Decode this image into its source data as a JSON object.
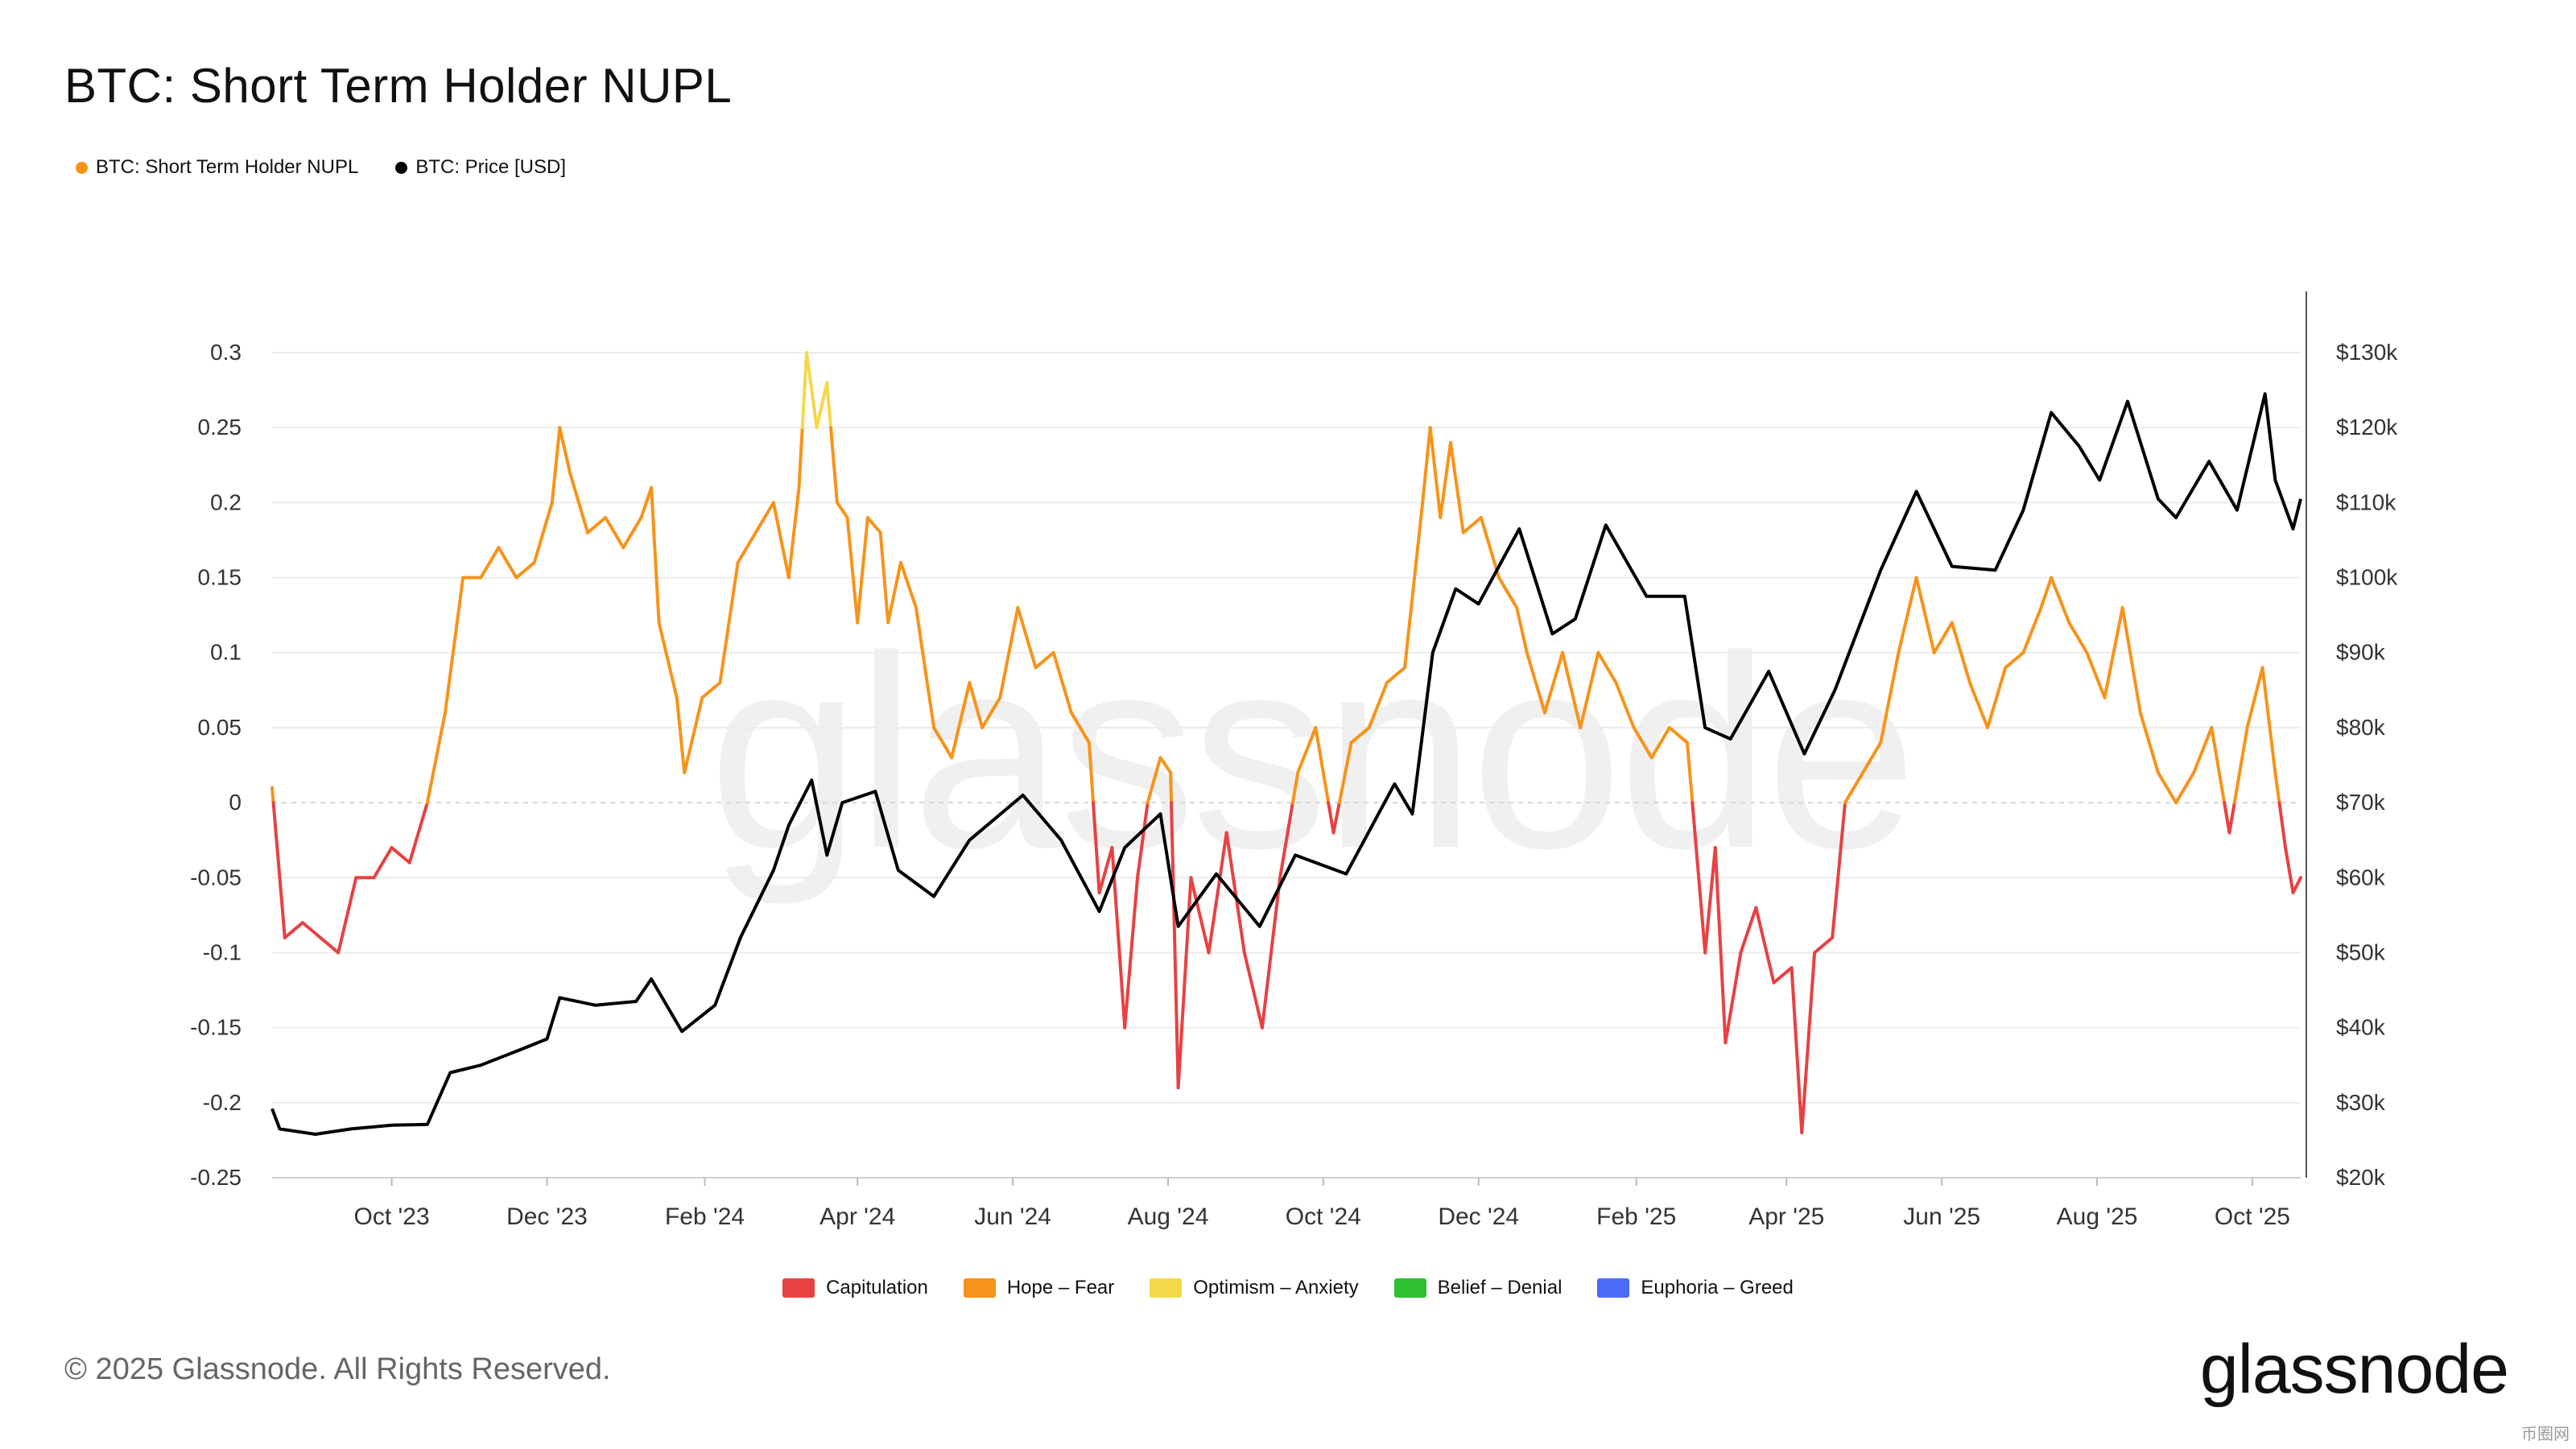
{
  "title": "BTC: Short Term Holder NUPL",
  "legend_top": [
    {
      "label": "BTC: Short Term Holder NUPL",
      "color": "#f7931a"
    },
    {
      "label": "BTC: Price [USD]",
      "color": "#000000"
    }
  ],
  "legend_bottom": [
    {
      "label": "Capitulation",
      "color": "#e84142"
    },
    {
      "label": "Hope – Fear",
      "color": "#f7931a"
    },
    {
      "label": "Optimism – Anxiety",
      "color": "#f4d84a"
    },
    {
      "label": "Belief – Denial",
      "color": "#2fc12f"
    },
    {
      "label": "Euphoria – Greed",
      "color": "#4a6cf7"
    }
  ],
  "watermark": "glassnode",
  "copyright": "© 2025 Glassnode. All Rights Reserved.",
  "logo": "glassnode",
  "corner_mark": "币圈网",
  "chart_data": {
    "type": "line",
    "title": "BTC: Short Term Holder NUPL",
    "x_ticks": [
      "Oct '23",
      "Dec '23",
      "Feb '24",
      "Apr '24",
      "Jun '24",
      "Aug '24",
      "Oct '24",
      "Dec '24",
      "Feb '25",
      "Apr '25",
      "Jun '25",
      "Aug '25",
      "Oct '25"
    ],
    "y_left_ticks": [
      "0.3",
      "0.25",
      "0.2",
      "0.15",
      "0.1",
      "0.05",
      "0",
      "-0.05",
      "-0.1",
      "-0.15",
      "-0.2",
      "-0.25"
    ],
    "y_right_ticks": [
      "$130k",
      "$120k",
      "$110k",
      "$100k",
      "$90k",
      "$80k",
      "$70k",
      "$60k",
      "$50k",
      "$40k",
      "$30k",
      "$20k"
    ],
    "x_range": [
      "2023-08-15",
      "2025-10-20"
    ],
    "y_left_range": [
      -0.25,
      0.3
    ],
    "y_right_range": [
      20000,
      130000
    ],
    "grid": true,
    "legend_position": "top-left",
    "series": [
      {
        "name": "BTC: Short Term Holder NUPL",
        "axis": "left",
        "color_by_zone": true,
        "points": [
          [
            "2023-08-15",
            0.01
          ],
          [
            "2023-08-20",
            -0.09
          ],
          [
            "2023-08-27",
            -0.08
          ],
          [
            "2023-09-03",
            -0.09
          ],
          [
            "2023-09-10",
            -0.1
          ],
          [
            "2023-09-17",
            -0.05
          ],
          [
            "2023-09-24",
            -0.05
          ],
          [
            "2023-10-01",
            -0.03
          ],
          [
            "2023-10-08",
            -0.04
          ],
          [
            "2023-10-15",
            0.0
          ],
          [
            "2023-10-22",
            0.06
          ],
          [
            "2023-10-29",
            0.15
          ],
          [
            "2023-11-05",
            0.15
          ],
          [
            "2023-11-12",
            0.17
          ],
          [
            "2023-11-19",
            0.15
          ],
          [
            "2023-11-26",
            0.16
          ],
          [
            "2023-12-03",
            0.2
          ],
          [
            "2023-12-06",
            0.25
          ],
          [
            "2023-12-10",
            0.22
          ],
          [
            "2023-12-17",
            0.18
          ],
          [
            "2023-12-24",
            0.19
          ],
          [
            "2023-12-31",
            0.17
          ],
          [
            "2024-01-07",
            0.19
          ],
          [
            "2024-01-11",
            0.21
          ],
          [
            "2024-01-14",
            0.12
          ],
          [
            "2024-01-21",
            0.07
          ],
          [
            "2024-01-24",
            0.02
          ],
          [
            "2024-01-31",
            0.07
          ],
          [
            "2024-02-07",
            0.08
          ],
          [
            "2024-02-14",
            0.16
          ],
          [
            "2024-02-21",
            0.18
          ],
          [
            "2024-02-28",
            0.2
          ],
          [
            "2024-03-05",
            0.15
          ],
          [
            "2024-03-09",
            0.21
          ],
          [
            "2024-03-12",
            0.3
          ],
          [
            "2024-03-16",
            0.25
          ],
          [
            "2024-03-20",
            0.28
          ],
          [
            "2024-03-24",
            0.2
          ],
          [
            "2024-03-28",
            0.19
          ],
          [
            "2024-04-01",
            0.12
          ],
          [
            "2024-04-05",
            0.19
          ],
          [
            "2024-04-10",
            0.18
          ],
          [
            "2024-04-13",
            0.12
          ],
          [
            "2024-04-18",
            0.16
          ],
          [
            "2024-04-24",
            0.13
          ],
          [
            "2024-05-01",
            0.05
          ],
          [
            "2024-05-08",
            0.03
          ],
          [
            "2024-05-15",
            0.08
          ],
          [
            "2024-05-20",
            0.05
          ],
          [
            "2024-05-27",
            0.07
          ],
          [
            "2024-06-03",
            0.13
          ],
          [
            "2024-06-10",
            0.09
          ],
          [
            "2024-06-17",
            0.1
          ],
          [
            "2024-06-24",
            0.06
          ],
          [
            "2024-07-01",
            0.04
          ],
          [
            "2024-07-05",
            -0.06
          ],
          [
            "2024-07-10",
            -0.03
          ],
          [
            "2024-07-15",
            -0.15
          ],
          [
            "2024-07-20",
            -0.05
          ],
          [
            "2024-07-24",
            0.0
          ],
          [
            "2024-07-29",
            0.03
          ],
          [
            "2024-08-02",
            0.02
          ],
          [
            "2024-08-05",
            -0.19
          ],
          [
            "2024-08-10",
            -0.05
          ],
          [
            "2024-08-17",
            -0.1
          ],
          [
            "2024-08-24",
            -0.02
          ],
          [
            "2024-08-31",
            -0.1
          ],
          [
            "2024-09-07",
            -0.15
          ],
          [
            "2024-09-14",
            -0.05
          ],
          [
            "2024-09-21",
            0.02
          ],
          [
            "2024-09-28",
            0.05
          ],
          [
            "2024-10-05",
            -0.02
          ],
          [
            "2024-10-12",
            0.04
          ],
          [
            "2024-10-19",
            0.05
          ],
          [
            "2024-10-26",
            0.08
          ],
          [
            "2024-11-02",
            0.09
          ],
          [
            "2024-11-09",
            0.2
          ],
          [
            "2024-11-12",
            0.25
          ],
          [
            "2024-11-16",
            0.19
          ],
          [
            "2024-11-20",
            0.24
          ],
          [
            "2024-11-25",
            0.18
          ],
          [
            "2024-12-02",
            0.19
          ],
          [
            "2024-12-09",
            0.15
          ],
          [
            "2024-12-16",
            0.13
          ],
          [
            "2024-12-20",
            0.1
          ],
          [
            "2024-12-27",
            0.06
          ],
          [
            "2025-01-03",
            0.1
          ],
          [
            "2025-01-10",
            0.05
          ],
          [
            "2025-01-17",
            0.1
          ],
          [
            "2025-01-24",
            0.08
          ],
          [
            "2025-01-31",
            0.05
          ],
          [
            "2025-02-07",
            0.03
          ],
          [
            "2025-02-14",
            0.05
          ],
          [
            "2025-02-21",
            0.04
          ],
          [
            "2025-02-25",
            -0.04
          ],
          [
            "2025-02-28",
            -0.1
          ],
          [
            "2025-03-04",
            -0.03
          ],
          [
            "2025-03-08",
            -0.16
          ],
          [
            "2025-03-14",
            -0.1
          ],
          [
            "2025-03-20",
            -0.07
          ],
          [
            "2025-03-27",
            -0.12
          ],
          [
            "2025-04-03",
            -0.11
          ],
          [
            "2025-04-07",
            -0.22
          ],
          [
            "2025-04-12",
            -0.1
          ],
          [
            "2025-04-19",
            -0.09
          ],
          [
            "2025-04-24",
            0.0
          ],
          [
            "2025-05-01",
            0.02
          ],
          [
            "2025-05-08",
            0.04
          ],
          [
            "2025-05-15",
            0.1
          ],
          [
            "2025-05-22",
            0.15
          ],
          [
            "2025-05-29",
            0.1
          ],
          [
            "2025-06-05",
            0.12
          ],
          [
            "2025-06-12",
            0.08
          ],
          [
            "2025-06-19",
            0.05
          ],
          [
            "2025-06-26",
            0.09
          ],
          [
            "2025-07-03",
            0.1
          ],
          [
            "2025-07-10",
            0.13
          ],
          [
            "2025-07-14",
            0.15
          ],
          [
            "2025-07-21",
            0.12
          ],
          [
            "2025-07-28",
            0.1
          ],
          [
            "2025-08-04",
            0.07
          ],
          [
            "2025-08-11",
            0.13
          ],
          [
            "2025-08-18",
            0.06
          ],
          [
            "2025-08-25",
            0.02
          ],
          [
            "2025-09-01",
            0.0
          ],
          [
            "2025-09-08",
            0.02
          ],
          [
            "2025-09-15",
            0.05
          ],
          [
            "2025-09-22",
            -0.02
          ],
          [
            "2025-09-29",
            0.05
          ],
          [
            "2025-10-05",
            0.09
          ],
          [
            "2025-10-10",
            0.02
          ],
          [
            "2025-10-14",
            -0.03
          ],
          [
            "2025-10-17",
            -0.06
          ],
          [
            "2025-10-20",
            -0.05
          ]
        ]
      },
      {
        "name": "BTC: Price [USD]",
        "axis": "right",
        "color": "#000000",
        "points": [
          [
            "2023-08-15",
            29200
          ],
          [
            "2023-08-18",
            26500
          ],
          [
            "2023-09-01",
            25800
          ],
          [
            "2023-09-15",
            26500
          ],
          [
            "2023-10-01",
            27000
          ],
          [
            "2023-10-15",
            27100
          ],
          [
            "2023-10-24",
            34000
          ],
          [
            "2023-11-05",
            35000
          ],
          [
            "2023-11-20",
            37000
          ],
          [
            "2023-12-01",
            38500
          ],
          [
            "2023-12-06",
            44000
          ],
          [
            "2023-12-20",
            43000
          ],
          [
            "2024-01-05",
            43500
          ],
          [
            "2024-01-11",
            46500
          ],
          [
            "2024-01-23",
            39500
          ],
          [
            "2024-02-05",
            43000
          ],
          [
            "2024-02-15",
            52000
          ],
          [
            "2024-02-28",
            61000
          ],
          [
            "2024-03-05",
            67000
          ],
          [
            "2024-03-14",
            73000
          ],
          [
            "2024-03-20",
            63000
          ],
          [
            "2024-03-26",
            70000
          ],
          [
            "2024-04-08",
            71500
          ],
          [
            "2024-04-17",
            61000
          ],
          [
            "2024-05-01",
            57500
          ],
          [
            "2024-05-15",
            65000
          ],
          [
            "2024-06-05",
            71000
          ],
          [
            "2024-06-20",
            65000
          ],
          [
            "2024-07-05",
            55500
          ],
          [
            "2024-07-15",
            64000
          ],
          [
            "2024-07-29",
            68500
          ],
          [
            "2024-08-05",
            53500
          ],
          [
            "2024-08-20",
            60500
          ],
          [
            "2024-09-06",
            53500
          ],
          [
            "2024-09-20",
            63000
          ],
          [
            "2024-10-10",
            60500
          ],
          [
            "2024-10-29",
            72500
          ],
          [
            "2024-11-05",
            68500
          ],
          [
            "2024-11-13",
            90000
          ],
          [
            "2024-11-22",
            98500
          ],
          [
            "2024-12-01",
            96500
          ],
          [
            "2024-12-17",
            106500
          ],
          [
            "2024-12-30",
            92500
          ],
          [
            "2025-01-08",
            94500
          ],
          [
            "2025-01-20",
            107000
          ],
          [
            "2025-02-05",
            97500
          ],
          [
            "2025-02-20",
            97500
          ],
          [
            "2025-02-28",
            80000
          ],
          [
            "2025-03-10",
            78500
          ],
          [
            "2025-03-25",
            87500
          ],
          [
            "2025-04-08",
            76500
          ],
          [
            "2025-04-20",
            85000
          ],
          [
            "2025-05-08",
            101000
          ],
          [
            "2025-05-22",
            111500
          ],
          [
            "2025-06-05",
            101500
          ],
          [
            "2025-06-22",
            101000
          ],
          [
            "2025-07-03",
            109000
          ],
          [
            "2025-07-14",
            122000
          ],
          [
            "2025-07-25",
            117500
          ],
          [
            "2025-08-02",
            113000
          ],
          [
            "2025-08-13",
            123500
          ],
          [
            "2025-08-25",
            110500
          ],
          [
            "2025-09-01",
            108000
          ],
          [
            "2025-09-14",
            115500
          ],
          [
            "2025-09-25",
            109000
          ],
          [
            "2025-10-06",
            124500
          ],
          [
            "2025-10-10",
            113000
          ],
          [
            "2025-10-17",
            106500
          ],
          [
            "2025-10-20",
            110500
          ]
        ]
      }
    ]
  }
}
